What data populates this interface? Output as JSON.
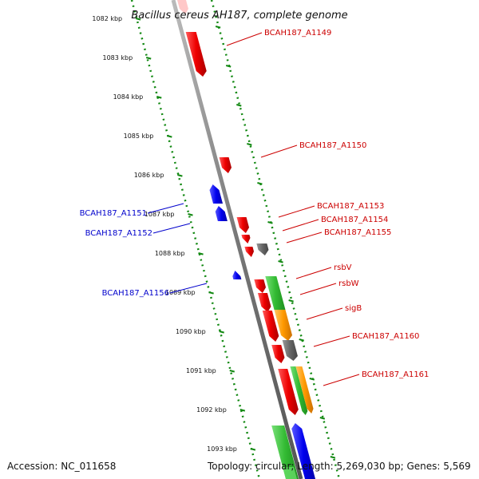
{
  "map": {
    "title": "Bacillus cereus AH187, complete genome",
    "accession": "Accession: NC_011658",
    "summary": "Topology: circular; Length: 5,269,030 bp; Genes: 5,569"
  },
  "colors": {
    "forward_gene": "#ee0000",
    "reverse_gene": "#0000ee",
    "other_gene": "#666666",
    "green_feature": "#33bb33",
    "orange_feature": "#ff9900",
    "ruler": "#118811",
    "backbone": "#888888"
  },
  "ticks": [
    "1082 kbp",
    "1083 kbp",
    "1084 kbp",
    "1085 kbp",
    "1086 kbp",
    "1087 kbp",
    "1088 kbp",
    "1089 kbp",
    "1090 kbp",
    "1091 kbp",
    "1092 kbp",
    "1093 kbp"
  ],
  "labels_right": [
    {
      "name": "BCAH187_A1149",
      "color": "#cc0000"
    },
    {
      "name": "BCAH187_A1150",
      "color": "#cc0000"
    },
    {
      "name": "BCAH187_A1153",
      "color": "#cc0000"
    },
    {
      "name": "BCAH187_A1154",
      "color": "#cc0000"
    },
    {
      "name": "BCAH187_A1155",
      "color": "#cc0000"
    },
    {
      "name": "rsbV",
      "color": "#cc0000"
    },
    {
      "name": "rsbW",
      "color": "#cc0000"
    },
    {
      "name": "sigB",
      "color": "#cc0000"
    },
    {
      "name": "BCAH187_A1160",
      "color": "#cc0000"
    },
    {
      "name": "BCAH187_A1161",
      "color": "#cc0000"
    }
  ],
  "labels_left": [
    {
      "name": "BCAH187_A1151",
      "color": "#0000cc"
    },
    {
      "name": "BCAH187_A1152",
      "color": "#0000cc"
    },
    {
      "name": "BCAH187_A1156",
      "color": "#0000cc"
    }
  ]
}
